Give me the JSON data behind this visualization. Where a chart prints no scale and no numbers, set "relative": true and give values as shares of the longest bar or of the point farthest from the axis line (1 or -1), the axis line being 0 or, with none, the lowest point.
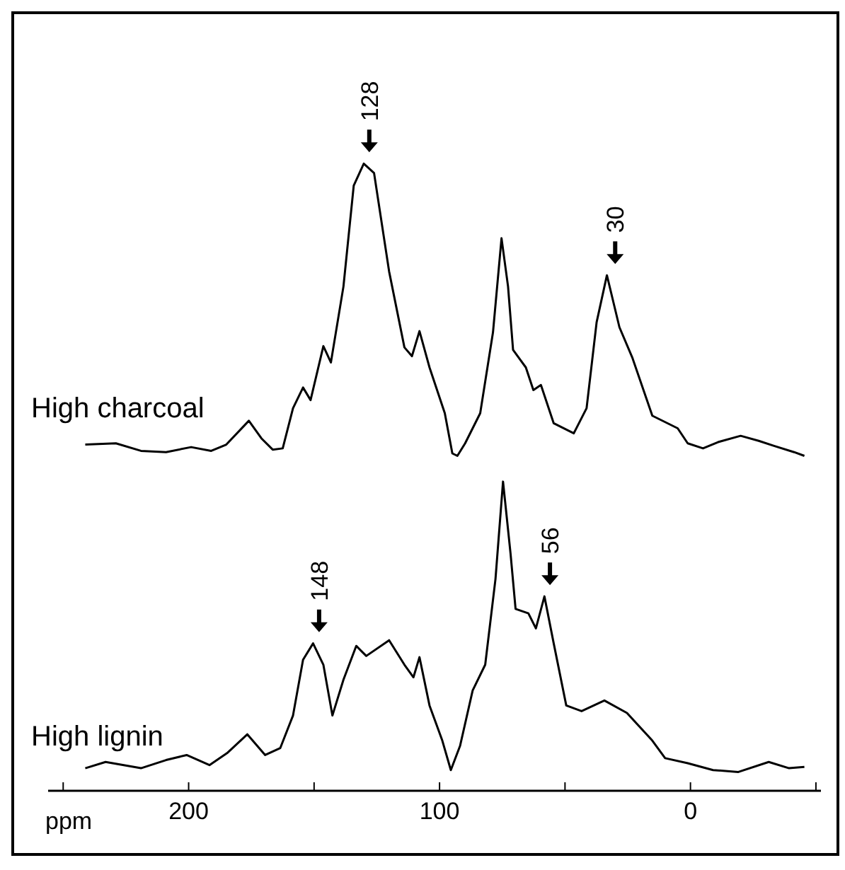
{
  "chart_data": {
    "type": "line",
    "relative": true,
    "xlim": [
      256,
      -52
    ],
    "xlabel": "ppm",
    "xticks": [
      {
        "value": 250,
        "label": null
      },
      200,
      {
        "value": 150,
        "label": null
      },
      100,
      {
        "value": 50,
        "label": null
      },
      0,
      {
        "value": -50,
        "label": null
      }
    ],
    "series": [
      {
        "name": "High charcoal",
        "color": "#000000",
        "x": [
          241.2,
          229,
          219,
          209,
          199,
          191,
          185,
          176,
          171,
          166.5,
          162.5,
          158.4,
          154.4,
          151.4,
          146.3,
          143.3,
          138.3,
          134.2,
          130.2,
          126.1,
          120.1,
          114,
          111,
          108,
          104,
          97.9,
          94.9,
          92.9,
          89.8,
          83.8,
          78.7,
          75.3,
          72.7,
          70.7,
          65.6,
          62.6,
          59.6,
          54.5,
          46.5,
          41.4,
          37.4,
          33.3,
          28.3,
          23.2,
          15.2,
          5.1,
          1.1,
          -5,
          -11,
          -20,
          -27.2,
          -33.3,
          -41.3,
          -45.4
        ],
        "values": [
          0.552,
          0.554,
          0.542,
          0.54,
          0.548,
          0.542,
          0.552,
          0.59,
          0.562,
          0.544,
          0.546,
          0.61,
          0.643,
          0.623,
          0.709,
          0.683,
          0.804,
          0.965,
          1,
          0.985,
          0.828,
          0.707,
          0.693,
          0.733,
          0.675,
          0.602,
          0.538,
          0.534,
          0.554,
          0.602,
          0.731,
          0.881,
          0.804,
          0.703,
          0.675,
          0.639,
          0.647,
          0.586,
          0.57,
          0.61,
          0.747,
          0.822,
          0.739,
          0.691,
          0.598,
          0.578,
          0.554,
          0.546,
          0.556,
          0.566,
          0.558,
          0.55,
          0.54,
          0.534
        ]
      },
      {
        "name": "High lignin",
        "color": "#000000",
        "x": [
          241.2,
          233.1,
          219,
          209,
          200.8,
          191.7,
          184.7,
          176.6,
          169.5,
          163.5,
          158.4,
          154.4,
          150.4,
          146.3,
          142.7,
          138.3,
          133.2,
          129.2,
          120.1,
          114,
          110.4,
          108,
          104,
          98.9,
          95.5,
          91.8,
          86.8,
          81.8,
          77.7,
          74.7,
          71.7,
          69.7,
          64.6,
          61.6,
          58.2,
          54.5,
          49.5,
          43.4,
          34.3,
          25.3,
          15.2,
          10.1,
          1.1,
          -9,
          -19.1,
          -31.2,
          -39.3,
          -45.4
        ],
        "values": [
          0.036,
          0.046,
          0.036,
          0.049,
          0.057,
          0.041,
          0.06,
          0.09,
          0.057,
          0.068,
          0.12,
          0.209,
          0.235,
          0.201,
          0.12,
          0.177,
          0.231,
          0.215,
          0.24,
          0.201,
          0.181,
          0.213,
          0.136,
          0.08,
          0.033,
          0.072,
          0.16,
          0.201,
          0.338,
          0.493,
          0.378,
          0.29,
          0.283,
          0.259,
          0.31,
          0.235,
          0.136,
          0.127,
          0.144,
          0.124,
          0.08,
          0.052,
          0.044,
          0.033,
          0.03,
          0.046,
          0.036,
          0.038
        ]
      }
    ],
    "annotations": [
      {
        "text": "128",
        "x": 128,
        "y": 1
      },
      {
        "text": "30",
        "x": 30,
        "y": 0.822
      },
      {
        "text": "148",
        "x": 148,
        "y": 0.235
      },
      {
        "text": "56",
        "x": 56,
        "y": 0.31
      }
    ]
  }
}
